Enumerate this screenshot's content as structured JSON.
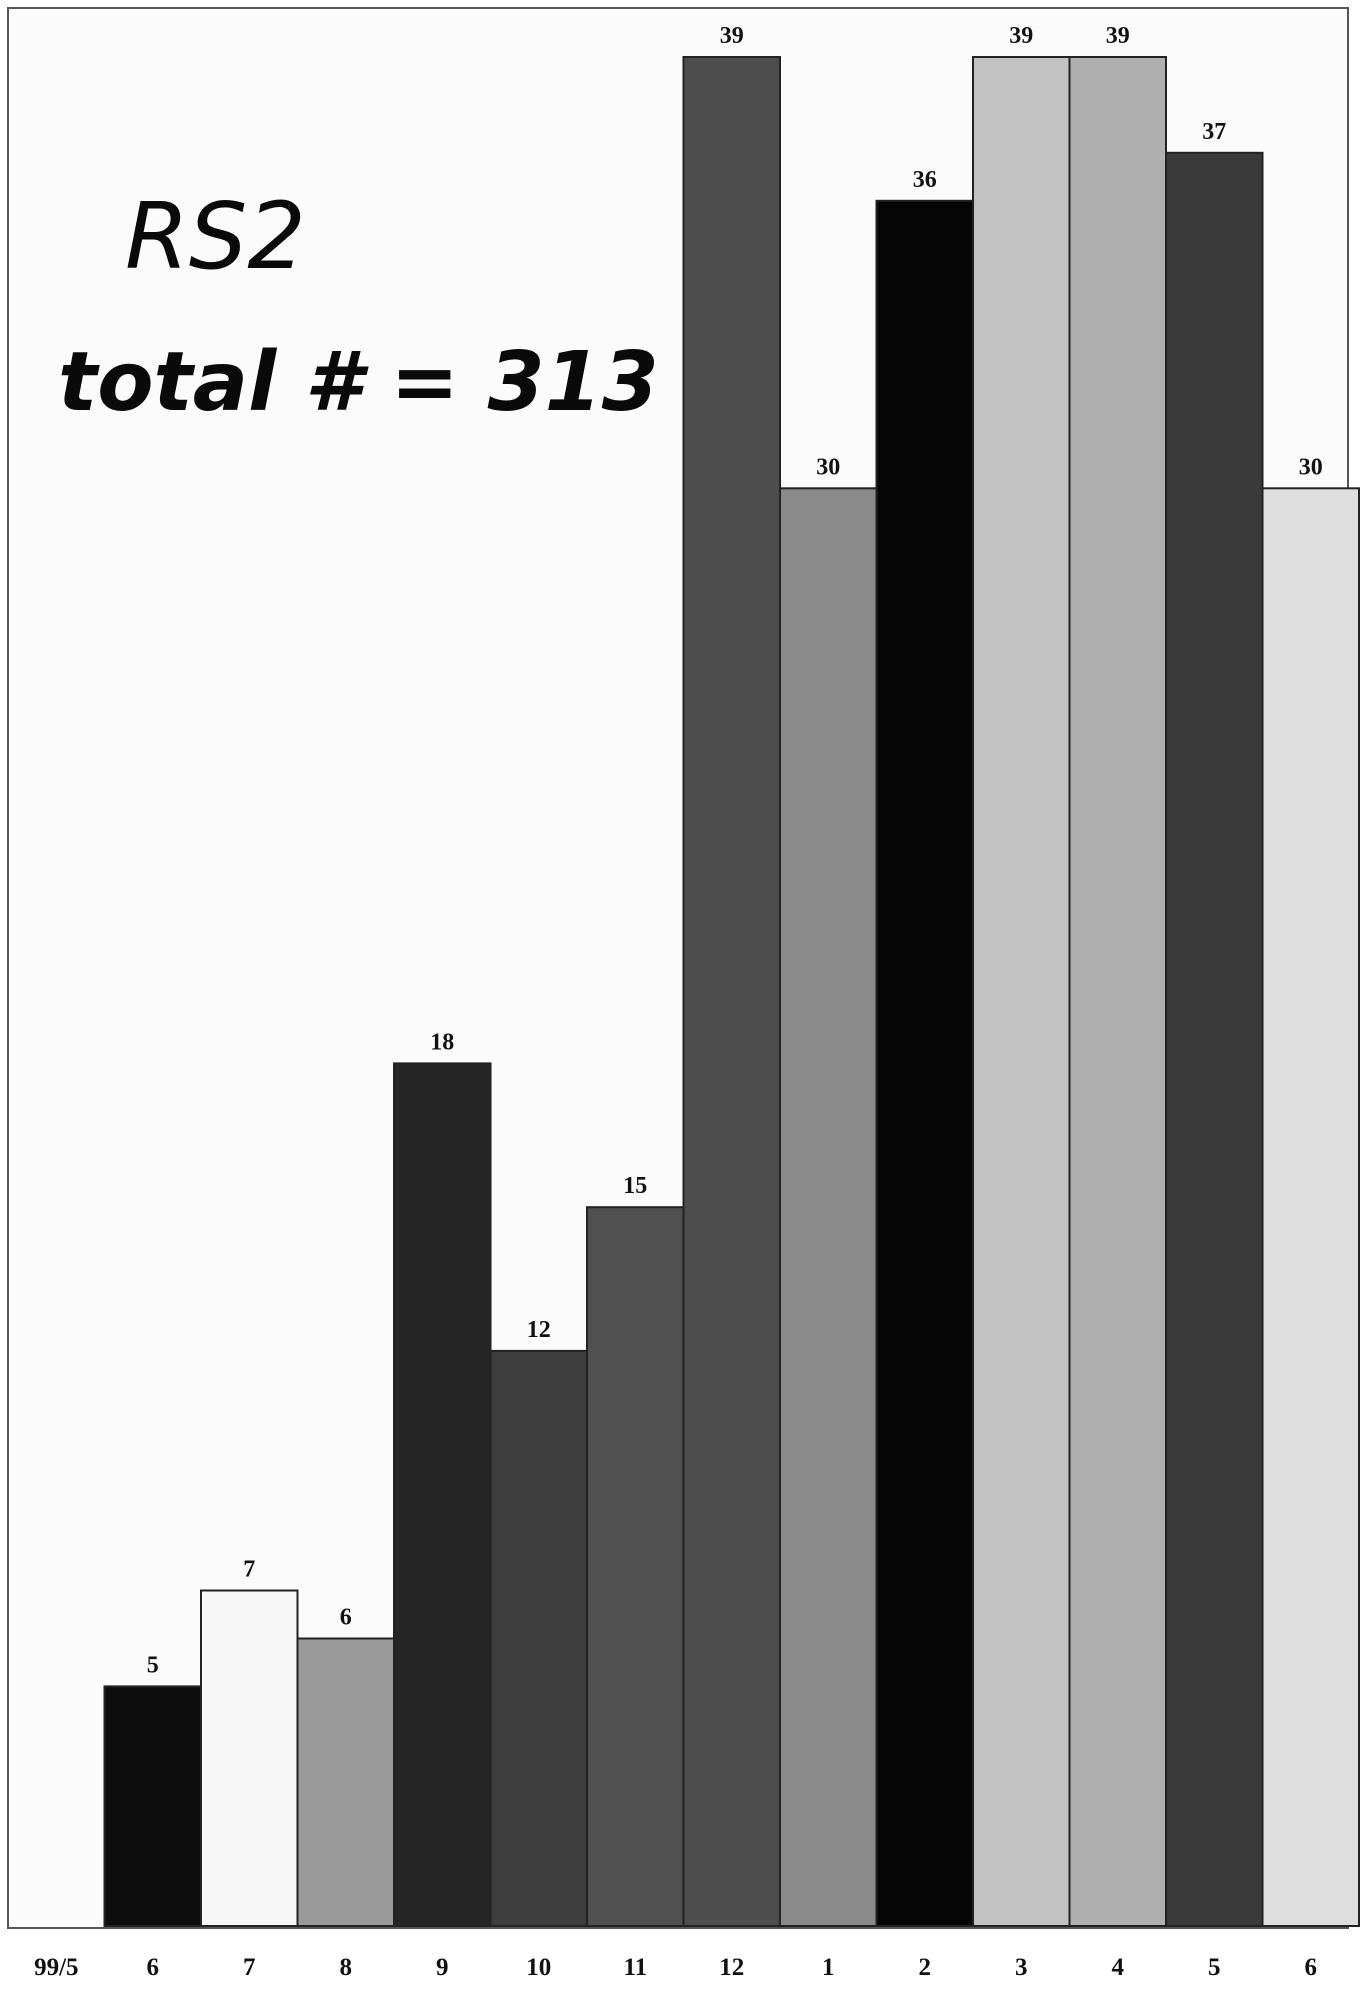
{
  "chart_data": {
    "type": "bar",
    "title": "RS2",
    "subtitle": "total # = 313",
    "categories": [
      "99/5",
      "6",
      "7",
      "8",
      "9",
      "10",
      "11",
      "12",
      "1",
      "2",
      "3",
      "4",
      "5",
      "6"
    ],
    "values": [
      0,
      5,
      7,
      6,
      18,
      12,
      15,
      39,
      30,
      36,
      39,
      39,
      37,
      30
    ],
    "data_labels": [
      "",
      "5",
      "7",
      "6",
      "18",
      "12",
      "15",
      "39",
      "30",
      "36",
      "39",
      "39",
      "37",
      "30"
    ],
    "bar_colors": [
      "#ffffff",
      "#0d0d0d",
      "#f7f7f7",
      "#9a9a9a",
      "#252525",
      "#3e3e3e",
      "#505050",
      "#4d4d4d",
      "#8a8a8a",
      "#050505",
      "#c2c2c2",
      "#b0b0b0",
      "#3a3a3a",
      "#dedede"
    ],
    "xlabel": "",
    "ylabel": "",
    "ylim": [
      0,
      39
    ],
    "grid": false,
    "legend": "none"
  }
}
